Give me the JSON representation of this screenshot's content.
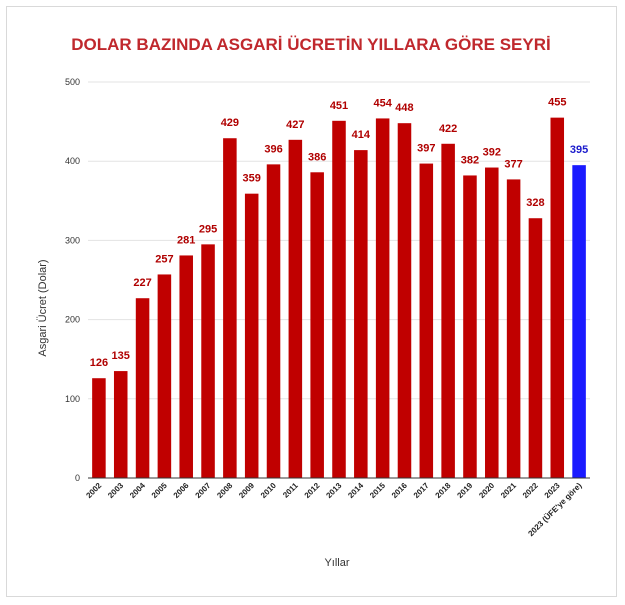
{
  "chart_data": {
    "type": "bar",
    "title": "DOLAR BAZINDA ASGARİ ÜCRETİN YILLARA GÖRE SEYRİ",
    "xlabel": "Yıllar",
    "ylabel": "Asgari Ücret (Dolar)",
    "ylim": [
      0,
      500
    ],
    "yticks": [
      "0",
      "100",
      "200",
      "300",
      "400",
      "500"
    ],
    "grid": true,
    "legend": "none",
    "categories": [
      "2002",
      "2003",
      "2004",
      "2005",
      "2006",
      "2007",
      "2008",
      "2009",
      "2010",
      "2011",
      "2012",
      "2013",
      "2014",
      "2015",
      "2016",
      "2017",
      "2018",
      "2019",
      "2020",
      "2021",
      "2022",
      "2023",
      "2023 (ÜFE'ye göre)"
    ],
    "values": [
      126,
      135,
      227,
      257,
      281,
      295,
      429,
      359,
      396,
      427,
      386,
      451,
      414,
      454,
      448,
      397,
      422,
      382,
      392,
      377,
      328,
      455,
      395
    ],
    "colors": {
      "title": "#c0282d",
      "bar": "#c00000",
      "highlight_bar": "#1a1aff",
      "label": "#b00000",
      "highlight_label": "#1a1acc",
      "grid": "#e3e3e3"
    },
    "highlight_index": 22
  }
}
